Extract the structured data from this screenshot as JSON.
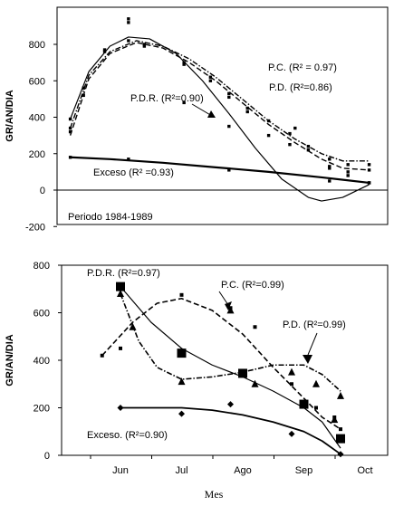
{
  "chart_data": [
    {
      "type": "line",
      "ylabel": "GR/AN/DIA",
      "ylim": [
        -200,
        1000
      ],
      "y_ticks": [
        "-200",
        "0",
        "200",
        "400",
        "600",
        "800"
      ],
      "grid": false,
      "annotation": "Periodo 1984-1989",
      "series": [
        {
          "name": "P.C.",
          "label": "P.C. (R² = 0.97)",
          "style": "dash-dot",
          "points": [
            [
              5,
              340
            ],
            [
              10,
              560
            ],
            [
              18,
              770
            ],
            [
              27,
              820
            ],
            [
              33,
              800
            ],
            [
              48,
              700
            ],
            [
              58,
              600
            ],
            [
              65,
              530
            ],
            [
              72,
              450
            ],
            [
              80,
              380
            ],
            [
              88,
              310
            ],
            [
              95,
              240
            ],
            [
              103,
              170
            ],
            [
              110,
              140
            ],
            [
              118,
              140
            ]
          ],
          "fit": [
            [
              5,
              340
            ],
            [
              12,
              630
            ],
            [
              20,
              760
            ],
            [
              30,
              820
            ],
            [
              40,
              790
            ],
            [
              50,
              720
            ],
            [
              60,
              620
            ],
            [
              70,
              500
            ],
            [
              80,
              380
            ],
            [
              90,
              280
            ],
            [
              100,
              200
            ],
            [
              108,
              160
            ],
            [
              118,
              160
            ]
          ]
        },
        {
          "name": "P.D.",
          "label": "P.D. (R²=0.86)",
          "style": "dashed",
          "points": [
            [
              5,
              320
            ],
            [
              10,
              520
            ],
            [
              18,
              760
            ],
            [
              27,
              940
            ],
            [
              33,
              790
            ],
            [
              48,
              690
            ],
            [
              58,
              620
            ],
            [
              65,
              350
            ],
            [
              72,
              430
            ],
            [
              80,
              300
            ],
            [
              88,
              250
            ],
            [
              95,
              220
            ],
            [
              103,
              130
            ],
            [
              110,
              100
            ],
            [
              118,
              110
            ]
          ],
          "fit": [
            [
              5,
              300
            ],
            [
              12,
              610
            ],
            [
              20,
              750
            ],
            [
              30,
              810
            ],
            [
              40,
              780
            ],
            [
              50,
              700
            ],
            [
              60,
              600
            ],
            [
              70,
              480
            ],
            [
              80,
              360
            ],
            [
              90,
              260
            ],
            [
              100,
              170
            ],
            [
              108,
              120
            ],
            [
              118,
              110
            ]
          ]
        },
        {
          "name": "P.D.R.",
          "label": "P.D.R. (R²=0.90)",
          "style": "solid",
          "points": [
            [
              5,
              390
            ],
            [
              27,
              920
            ],
            [
              48,
              480
            ],
            [
              65,
              510
            ],
            [
              90,
              340
            ],
            [
              103,
              120
            ],
            [
              110,
              80
            ],
            [
              118,
              40
            ]
          ],
          "fit": [
            [
              5,
              390
            ],
            [
              12,
              650
            ],
            [
              20,
              790
            ],
            [
              27,
              840
            ],
            [
              35,
              830
            ],
            [
              45,
              750
            ],
            [
              55,
              600
            ],
            [
              65,
              420
            ],
            [
              75,
              230
            ],
            [
              85,
              60
            ],
            [
              95,
              -40
            ],
            [
              100,
              -60
            ],
            [
              108,
              -40
            ],
            [
              118,
              30
            ]
          ]
        },
        {
          "name": "Exceso",
          "label": "Exceso (R² =0.93)",
          "style": "solid-thick",
          "points": [
            [
              5,
              180
            ],
            [
              27,
              170
            ],
            [
              65,
              110
            ],
            [
              103,
              50
            ],
            [
              118,
              40
            ]
          ],
          "fit": [
            [
              5,
              180
            ],
            [
              20,
              170
            ],
            [
              40,
              150
            ],
            [
              60,
              125
            ],
            [
              80,
              100
            ],
            [
              100,
              70
            ],
            [
              118,
              40
            ]
          ]
        }
      ]
    },
    {
      "type": "line",
      "xlabel": "Mes",
      "ylabel": "GR/AN/DIA",
      "ylim": [
        0,
        800
      ],
      "y_ticks": [
        "0",
        "200",
        "400",
        "600",
        "800"
      ],
      "x_ticks": [
        "Jun",
        "Jul",
        "Ago",
        "Sep",
        "Oct"
      ],
      "grid": false,
      "series": [
        {
          "name": "P.D.R.",
          "label": "P.D.R. (R²=0.97)",
          "style": "solid",
          "marker": "square",
          "points": [
            [
              0,
              710
            ],
            [
              1,
              430
            ],
            [
              2,
              345
            ],
            [
              3,
              215
            ],
            [
              3.6,
              70
            ]
          ],
          "fit": [
            [
              0,
              710
            ],
            [
              0.5,
              560
            ],
            [
              1,
              450
            ],
            [
              1.5,
              380
            ],
            [
              2,
              330
            ],
            [
              2.5,
              270
            ],
            [
              3,
              200
            ],
            [
              3.3,
              140
            ],
            [
              3.6,
              30
            ]
          ]
        },
        {
          "name": "P.C.",
          "label": "P.C. (R²=0.99)",
          "style": "dash-dot",
          "marker": "triangle",
          "points": [
            [
              0,
              680
            ],
            [
              0.2,
              540
            ],
            [
              1,
              310
            ],
            [
              1.8,
              610
            ],
            [
              2.2,
              300
            ],
            [
              2.8,
              350
            ],
            [
              3.2,
              300
            ],
            [
              3.5,
              150
            ],
            [
              3.6,
              250
            ]
          ],
          "fit": [
            [
              0,
              680
            ],
            [
              0.3,
              480
            ],
            [
              0.6,
              370
            ],
            [
              1,
              320
            ],
            [
              1.5,
              330
            ],
            [
              2,
              350
            ],
            [
              2.5,
              380
            ],
            [
              3,
              380
            ],
            [
              3.3,
              340
            ],
            [
              3.6,
              270
            ]
          ]
        },
        {
          "name": "P.D.",
          "label": "P.D. (R²=0.99)",
          "style": "dashed",
          "marker": "small-square",
          "points": [
            [
              -0.3,
              420
            ],
            [
              0,
              450
            ],
            [
              1,
              675
            ],
            [
              1.8,
              620
            ],
            [
              2.2,
              540
            ],
            [
              2.8,
              300
            ],
            [
              3.2,
              200
            ],
            [
              3.5,
              160
            ],
            [
              3.6,
              110
            ]
          ],
          "fit": [
            [
              -0.3,
              420
            ],
            [
              0.2,
              560
            ],
            [
              0.6,
              640
            ],
            [
              1,
              660
            ],
            [
              1.5,
              610
            ],
            [
              2,
              510
            ],
            [
              2.5,
              370
            ],
            [
              3,
              240
            ],
            [
              3.3,
              160
            ],
            [
              3.6,
              110
            ]
          ]
        },
        {
          "name": "Exceso",
          "label": "Exceso. (R²=0.90)",
          "style": "solid-thick",
          "marker": "diamond",
          "points": [
            [
              0,
              200
            ],
            [
              1,
              175
            ],
            [
              1.8,
              215
            ],
            [
              2.8,
              90
            ],
            [
              3.6,
              5
            ]
          ],
          "fit": [
            [
              0,
              200
            ],
            [
              0.5,
              200
            ],
            [
              1,
              200
            ],
            [
              1.5,
              190
            ],
            [
              2,
              170
            ],
            [
              2.5,
              140
            ],
            [
              3,
              100
            ],
            [
              3.3,
              60
            ],
            [
              3.6,
              5
            ]
          ]
        }
      ]
    }
  ]
}
